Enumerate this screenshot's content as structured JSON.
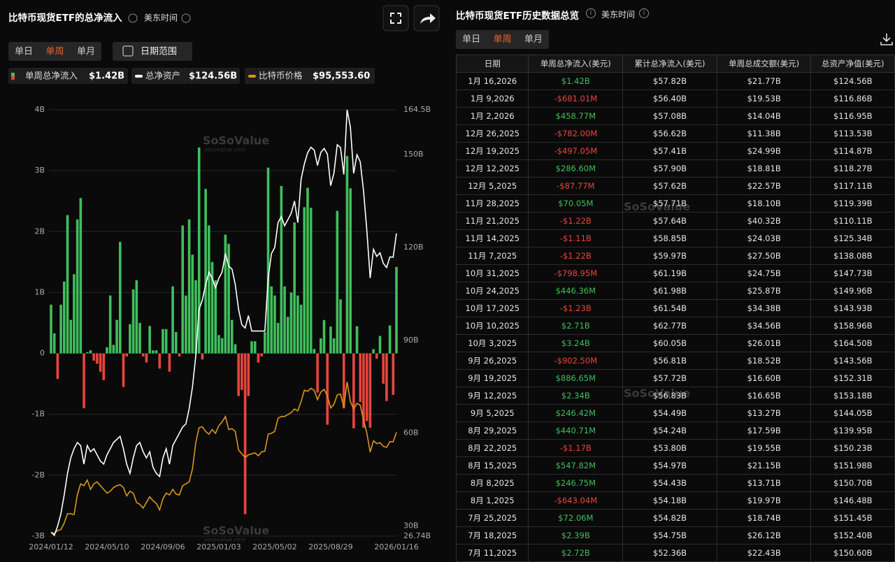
{
  "watermark": "SoSoValue",
  "watermark_domain": "sosovalue.com",
  "left_panel": {
    "title": "比特币现货ETF的总净流入",
    "timezone": "美东时间",
    "tabs": [
      "单日",
      "单周",
      "单月"
    ],
    "active_tab": 1,
    "date_button": "日期范围"
  },
  "chart_data": {
    "type": "bar",
    "categories": [
      "2024/01/12",
      null,
      null,
      null,
      null,
      null,
      null,
      null,
      null,
      null,
      null,
      null,
      null,
      null,
      null,
      null,
      null,
      "2024/05/10",
      null,
      null,
      null,
      null,
      null,
      null,
      null,
      null,
      null,
      null,
      null,
      null,
      null,
      null,
      null,
      null,
      "2024/09/06",
      null,
      null,
      null,
      null,
      null,
      null,
      null,
      null,
      null,
      null,
      null,
      null,
      null,
      null,
      null,
      null,
      "2025/01/03",
      null,
      null,
      null,
      null,
      null,
      null,
      null,
      null,
      null,
      null,
      null,
      null,
      null,
      null,
      null,
      null,
      "2025/05/02",
      null,
      null,
      null,
      null,
      null,
      null,
      null,
      null,
      null,
      null,
      null,
      null,
      null,
      null,
      null,
      null,
      "2025/08/29",
      null,
      null,
      null,
      null,
      null,
      null,
      null,
      null,
      null,
      null,
      null,
      null,
      null,
      null,
      null,
      null,
      null,
      null,
      null,
      "2026/01/16"
    ],
    "ylim": [
      -3,
      4
    ],
    "yticks": [
      {
        "value": 4,
        "label": "4B"
      },
      {
        "value": 3,
        "label": "3B"
      },
      {
        "value": 2,
        "label": "2B"
      },
      {
        "value": 1,
        "label": "1B"
      },
      0,
      {
        "value": -1,
        "label": "-1B"
      },
      {
        "value": -2,
        "label": "-2B"
      },
      {
        "value": -3,
        "label": "-3B"
      }
    ],
    "y2lim": [
      26.74,
      164.5
    ],
    "y2ticks": [
      {
        "value": 164.5,
        "label": "164.5B"
      },
      {
        "value": 150,
        "label": "150B"
      },
      {
        "value": 120,
        "label": "120B"
      },
      {
        "value": 90,
        "label": "90B"
      },
      {
        "value": 60,
        "label": "60B"
      },
      {
        "value": 30,
        "label": "30B"
      },
      {
        "value": 26.74,
        "label": "26.74B"
      }
    ],
    "y3lim": [
      40000,
      268000
    ],
    "grid": true,
    "series": [
      {
        "name": "单周总净流入",
        "summary": "$1.42B",
        "type": "bar",
        "color": "#3fbf5c",
        "negative_color": "#e8453c",
        "values": [
          0.8,
          0.33,
          -0.42,
          0.8,
          1.18,
          2.27,
          0.55,
          1.3,
          2.2,
          2.55,
          -0.9,
          0.02,
          0.05,
          -0.12,
          -0.17,
          -0.3,
          -0.44,
          0.1,
          0.95,
          0.14,
          0.55,
          1.83,
          -0.55,
          -0.05,
          0.48,
          1.05,
          1.2,
          0.5,
          -0.05,
          -0.15,
          0.45,
          0.05,
          0.05,
          -0.25,
          0.4,
          0.4,
          -0.3,
          1.1,
          0.35,
          -0.05,
          2.1,
          0.95,
          2.2,
          1.62,
          1.2,
          3.38,
          -0.1,
          2.7,
          2.1,
          1.5,
          1.2,
          0.3,
          0.25,
          1.95,
          1.8,
          0.55,
          0.15,
          -0.7,
          -0.6,
          -2.64,
          -0.7,
          0.2,
          0.2,
          -0.15,
          -0.05,
          0.35,
          3.05,
          1.1,
          0.95,
          0.5,
          2.75,
          1.1,
          0.6,
          1.0,
          2.15,
          0.95,
          0.8,
          2.4,
          2.72,
          2.39,
          0.07206,
          -0.64304,
          0.24675,
          0.54782,
          -1.17,
          0.44071,
          0.24642,
          2.34,
          0.88665,
          -0.9025,
          3.24,
          2.71,
          -1.23,
          0.44636,
          -0.79895,
          -1.22,
          -1.11,
          -1.22,
          0.07005,
          -0.08777,
          0.2866,
          -0.49705,
          -0.782,
          0.45877,
          -0.68101,
          1.42
        ]
      },
      {
        "name": "总净资产",
        "summary": "$124.56B",
        "type": "line",
        "color": "#ffffff",
        "axis": "y2",
        "values": [
          28,
          27,
          30,
          34,
          40,
          47,
          52,
          55,
          57,
          56,
          50,
          56,
          54,
          55,
          53,
          51,
          50,
          53,
          55,
          57,
          58,
          59,
          55,
          50,
          47,
          52,
          56,
          57,
          54,
          52,
          54,
          49,
          47,
          46,
          52,
          55,
          50,
          56,
          58,
          60,
          62,
          63,
          68,
          75,
          85,
          100,
          103,
          108,
          112,
          110,
          107,
          110,
          112,
          118,
          114,
          113,
          108,
          100,
          95,
          94,
          98,
          93,
          93,
          93,
          93,
          93,
          110,
          118,
          120,
          128,
          130,
          127,
          129,
          131,
          135,
          128,
          142,
          147,
          150.6,
          152.4,
          151.45,
          146.48,
          150.7,
          151.98,
          150.23,
          139.95,
          144.05,
          153.18,
          152.31,
          143.56,
          164.5,
          158.96,
          143.93,
          149.96,
          147.73,
          138.08,
          125.34,
          110.11,
          119.39,
          117.11,
          118.27,
          114.87,
          113.53,
          116.95,
          116.86,
          124.56
        ]
      },
      {
        "name": "比特币价格",
        "summary": "$95,553.60",
        "type": "line",
        "color": "#d9961e",
        "axis": "y3",
        "values": [
          42000,
          41500,
          43000,
          43500,
          47000,
          52000,
          52000,
          51500,
          62000,
          68000,
          67000,
          70000,
          65000,
          68000,
          69000,
          67000,
          65000,
          63000,
          64000,
          66000,
          67000,
          67500,
          66000,
          61500,
          64000,
          63000,
          58000,
          57000,
          55000,
          58000,
          61000,
          59000,
          57500,
          54000,
          60000,
          63000,
          62000,
          65000,
          62500,
          62000,
          67000,
          68000,
          69000,
          76000,
          90000,
          98000,
          98500,
          96000,
          94500,
          97000,
          95000,
          99000,
          101000,
          104000,
          97000,
          97500,
          96000,
          86000,
          84000,
          82000,
          83500,
          84000,
          84500,
          83000,
          85000,
          85500,
          94500,
          95000,
          96000,
          103000,
          104000,
          104000,
          105000,
          106000,
          108000,
          107000,
          112000,
          118000,
          117500,
          119000,
          118000,
          113000,
          117000,
          118500,
          115000,
          108500,
          110500,
          115500,
          116000,
          109000,
          122500,
          112000,
          108000,
          111000,
          110000,
          102000,
          95000,
          85000,
          91000,
          89500,
          90000,
          88000,
          87500,
          90500,
          90500,
          95553.6
        ]
      }
    ]
  },
  "table_panel": {
    "title": "比特币现货ETF历史数据总览",
    "timezone": "美东时间",
    "tabs": [
      "单日",
      "单周",
      "单月"
    ],
    "active_tab": 1,
    "columns": [
      "日期",
      "单周总净流入(美元)",
      "累计总净流入(美元)",
      "单周总成交额(美元)",
      "总资产净值(美元)"
    ],
    "rows": [
      [
        "1月 16,2026",
        "$1.42B",
        "$57.82B",
        "$21.77B",
        "$124.56B"
      ],
      [
        "1月 9,2026",
        "-$681.01M",
        "$56.40B",
        "$19.53B",
        "$116.86B"
      ],
      [
        "1月 2,2026",
        "$458.77M",
        "$57.08B",
        "$14.04B",
        "$116.95B"
      ],
      [
        "12月 26,2025",
        "-$782.00M",
        "$56.62B",
        "$11.38B",
        "$113.53B"
      ],
      [
        "12月 19,2025",
        "-$497.05M",
        "$57.41B",
        "$24.99B",
        "$114.87B"
      ],
      [
        "12月 12,2025",
        "$286.60M",
        "$57.90B",
        "$18.81B",
        "$118.27B"
      ],
      [
        "12月 5,2025",
        "-$87.77M",
        "$57.62B",
        "$22.57B",
        "$117.11B"
      ],
      [
        "11月 28,2025",
        "$70.05M",
        "$57.71B",
        "$18.10B",
        "$119.39B"
      ],
      [
        "11月 21,2025",
        "-$1.22B",
        "$57.64B",
        "$40.32B",
        "$110.11B"
      ],
      [
        "11月 14,2025",
        "-$1.11B",
        "$58.85B",
        "$24.03B",
        "$125.34B"
      ],
      [
        "11月 7,2025",
        "-$1.22B",
        "$59.97B",
        "$27.50B",
        "$138.08B"
      ],
      [
        "10月 31,2025",
        "-$798.95M",
        "$61.19B",
        "$24.75B",
        "$147.73B"
      ],
      [
        "10月 24,2025",
        "$446.36M",
        "$61.98B",
        "$25.87B",
        "$149.96B"
      ],
      [
        "10月 17,2025",
        "-$1.23B",
        "$61.54B",
        "$34.38B",
        "$143.93B"
      ],
      [
        "10月 10,2025",
        "$2.71B",
        "$62.77B",
        "$34.56B",
        "$158.96B"
      ],
      [
        "10月 3,2025",
        "$3.24B",
        "$60.05B",
        "$26.01B",
        "$164.50B"
      ],
      [
        "9月 26,2025",
        "-$902.50M",
        "$56.81B",
        "$18.52B",
        "$143.56B"
      ],
      [
        "9月 19,2025",
        "$886.65M",
        "$57.72B",
        "$16.60B",
        "$152.31B"
      ],
      [
        "9月 12,2025",
        "$2.34B",
        "$56.83B",
        "$16.65B",
        "$153.18B"
      ],
      [
        "9月 5,2025",
        "$246.42M",
        "$54.49B",
        "$13.27B",
        "$144.05B"
      ],
      [
        "8月 29,2025",
        "$440.71M",
        "$54.24B",
        "$17.59B",
        "$139.95B"
      ],
      [
        "8月 22,2025",
        "-$1.17B",
        "$53.80B",
        "$19.55B",
        "$150.23B"
      ],
      [
        "8月 15,2025",
        "$547.82M",
        "$54.97B",
        "$21.15B",
        "$151.98B"
      ],
      [
        "8月 8,2025",
        "$246.75M",
        "$54.43B",
        "$13.71B",
        "$150.70B"
      ],
      [
        "8月 1,2025",
        "-$643.04M",
        "$54.18B",
        "$19.97B",
        "$146.48B"
      ],
      [
        "7月 25,2025",
        "$72.06M",
        "$54.82B",
        "$18.74B",
        "$151.45B"
      ],
      [
        "7月 18,2025",
        "$2.39B",
        "$54.75B",
        "$26.12B",
        "$152.40B"
      ],
      [
        "7月 11,2025",
        "$2.72B",
        "$52.36B",
        "$22.43B",
        "$150.60B"
      ]
    ]
  }
}
